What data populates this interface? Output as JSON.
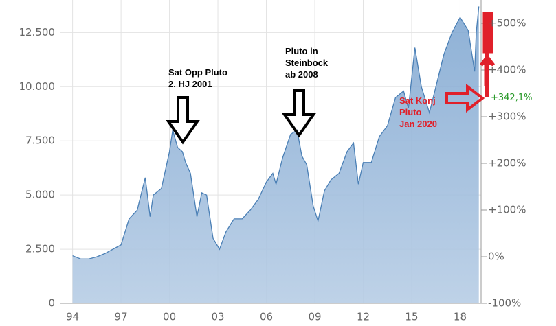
{
  "chart_data": {
    "type": "area",
    "x": [
      1994.0,
      1994.5,
      1995.0,
      1995.5,
      1996.0,
      1996.5,
      1997.0,
      1997.5,
      1998.0,
      1998.5,
      1998.8,
      1999.0,
      1999.5,
      2000.0,
      2000.2,
      2000.5,
      2000.8,
      2001.0,
      2001.3,
      2001.7,
      2002.0,
      2002.3,
      2002.7,
      2003.1,
      2003.5,
      2004.0,
      2004.5,
      2005.0,
      2005.5,
      2006.0,
      2006.4,
      2006.6,
      2007.0,
      2007.5,
      2007.9,
      2008.2,
      2008.5,
      2008.9,
      2009.2,
      2009.6,
      2010.0,
      2010.5,
      2011.0,
      2011.4,
      2011.7,
      2012.0,
      2012.5,
      2013.0,
      2013.5,
      2014.0,
      2014.5,
      2014.8,
      2015.2,
      2015.6,
      2016.1,
      2016.5,
      2017.0,
      2017.5,
      2018.0,
      2018.5,
      2018.9,
      2019.0,
      2019.16
    ],
    "series": [
      {
        "color": "#4a7fb5",
        "values": [
          2200,
          2050,
          2050,
          2150,
          2300,
          2500,
          2700,
          3900,
          4300,
          5800,
          4000,
          5000,
          5300,
          7000,
          8000,
          7200,
          7000,
          6500,
          6000,
          4000,
          5100,
          5000,
          3000,
          2500,
          3300,
          3900,
          3900,
          4300,
          4800,
          5600,
          6000,
          5500,
          6700,
          7800,
          8000,
          6800,
          6400,
          4500,
          3800,
          5200,
          5700,
          6000,
          7000,
          7400,
          5500,
          6500,
          6500,
          7700,
          8200,
          9500,
          9800,
          9000,
          11800,
          10000,
          8800,
          10000,
          11500,
          12500,
          13200,
          12600,
          10700,
          12500,
          13700
        ]
      }
    ],
    "xlim": [
      1993.25,
      2019.3
    ],
    "xticks": [
      {
        "value": 1994,
        "label": "94"
      },
      {
        "value": 1997,
        "label": "97"
      },
      {
        "value": 2000,
        "label": "00"
      },
      {
        "value": 2003,
        "label": "03"
      },
      {
        "value": 2006,
        "label": "06"
      },
      {
        "value": 2009,
        "label": "09"
      },
      {
        "value": 2012,
        "label": "12"
      },
      {
        "value": 2015,
        "label": "15"
      },
      {
        "value": 2018,
        "label": "18"
      }
    ],
    "ylim": [
      0,
      14000
    ],
    "yticks": [
      0,
      {
        "value": 2500,
        "label": "2.500"
      },
      {
        "value": 5000,
        "label": "5.000"
      },
      {
        "value": 7500,
        "label": "7.500"
      },
      {
        "value": 10000,
        "label": "10.000"
      },
      {
        "value": 12500,
        "label": "12.500"
      }
    ],
    "y2lim": [
      -100,
      550
    ],
    "y2ticks": [
      {
        "value": -100,
        "label": "-100%"
      },
      {
        "value": 0,
        "label": "0%"
      },
      {
        "value": 100,
        "label": "+100%"
      },
      {
        "value": 200,
        "label": "+200%"
      },
      {
        "value": 300,
        "label": "+300%"
      },
      {
        "value": 400,
        "label": "+400%"
      },
      {
        "value": 500,
        "label": "+500%"
      }
    ],
    "grid": true,
    "annotations": [
      {
        "lines": [
          "Sat Opp Pluto",
          "2. HJ 2001"
        ],
        "color": "#000000"
      },
      {
        "lines": [
          "Pluto in",
          "Steinbock",
          "ab 2008"
        ],
        "color": "#000000"
      },
      {
        "lines": [
          "Sat Konj",
          "Pluto",
          "Jan 2020"
        ],
        "color": "#e0202a"
      },
      {
        "lines": [
          "+342,1%"
        ],
        "color": "#2a9a2a"
      }
    ]
  }
}
